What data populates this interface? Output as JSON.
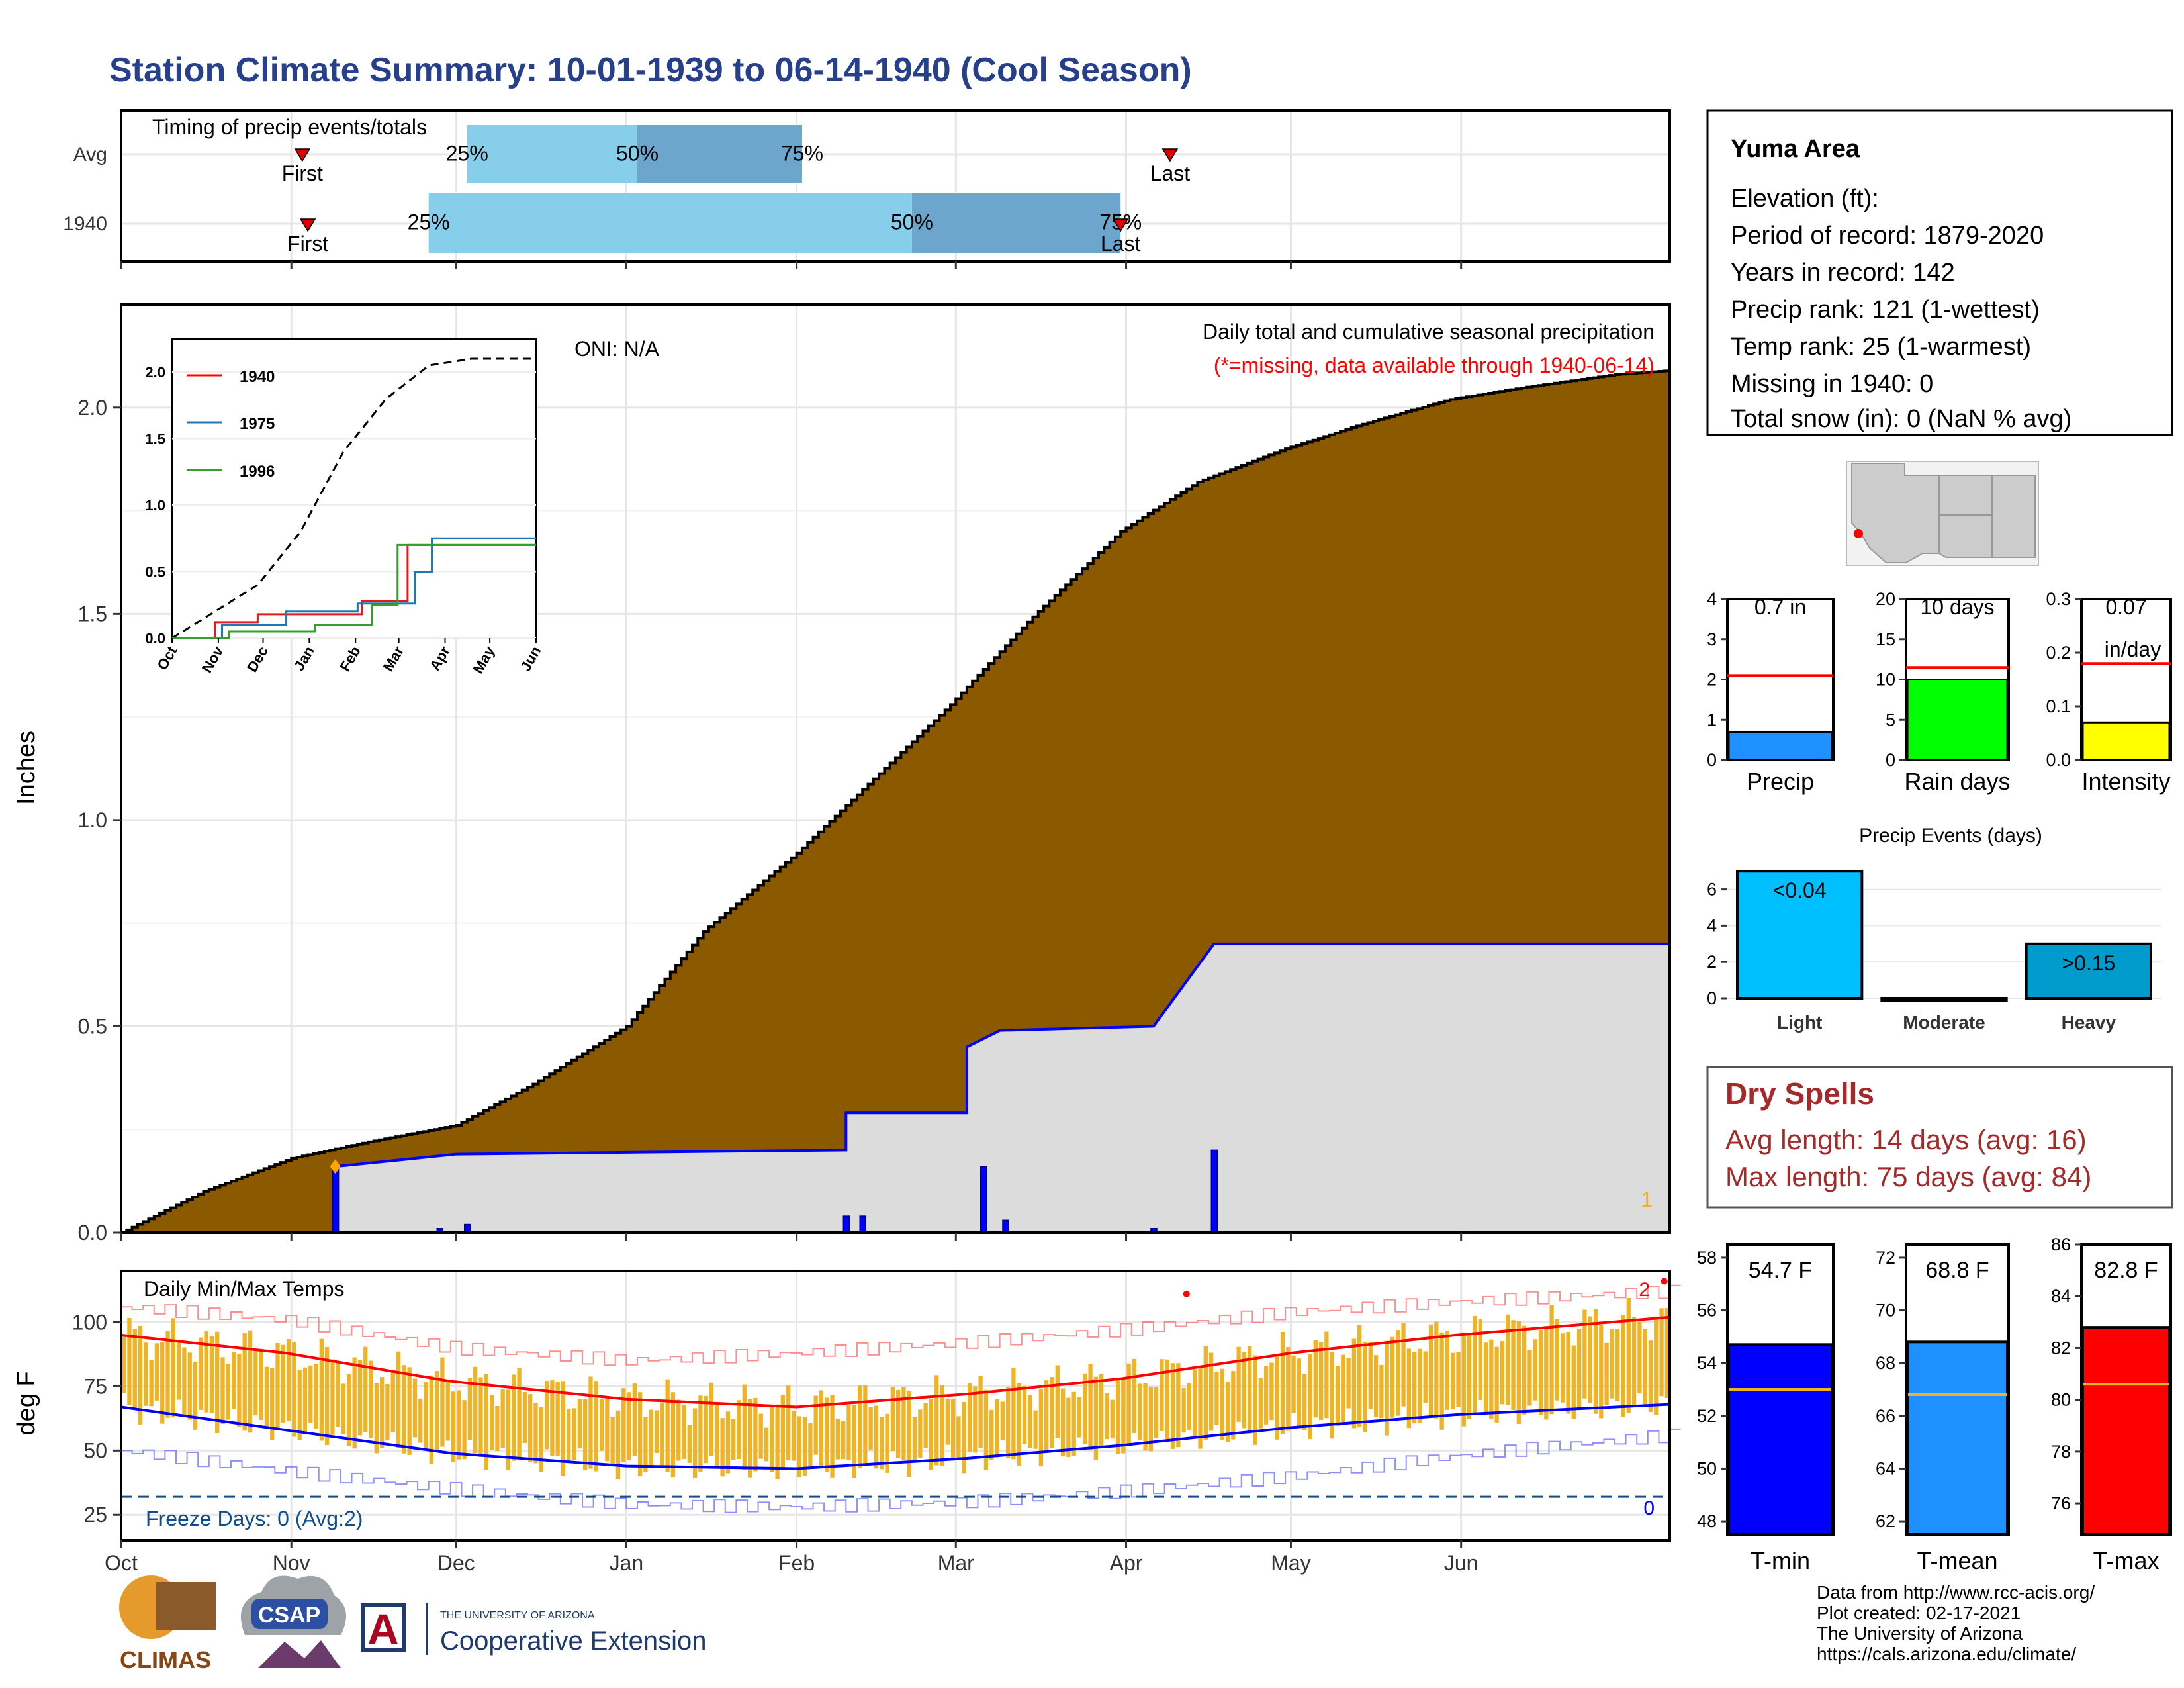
{
  "title": "Station Climate Summary: 10-01-1939 to 06-14-1940 (Cool Season)",
  "colors": {
    "title": "#27408B",
    "cumulative_fill": "#8B5A00",
    "avg_fill": "#DCDCDC",
    "daily_precip": "#0000FF",
    "timing_light": "#87CEEB",
    "timing_dark": "#6CA6CD",
    "temp_bar": "#F0B323",
    "temp_min": "#0000FF",
    "temp_max": "#FF0000",
    "missing_note": "#FF0000"
  },
  "timing": {
    "title": "Timing of precip events/totals",
    "rows": [
      {
        "label": "Avg",
        "p25_label": "25%",
        "p50_label": "50%",
        "p75_label": "75%",
        "first_label": "First",
        "last_label": "Last",
        "first": "1939-11-03",
        "p25": "1939-12-03",
        "p50": "1940-01-03",
        "p75": "1940-02-02",
        "last": "1940-04-09"
      },
      {
        "label": "1940",
        "p25_label": "25%",
        "p50_label": "50%",
        "p75_label": "75%",
        "first_label": "First",
        "last_label": "Last",
        "first": "1939-11-04",
        "p25": "1939-11-26",
        "p50": "1940-02-22",
        "p75": "1940-03-31",
        "last": "1940-03-31"
      }
    ]
  },
  "precip_panel": {
    "ylabel": "Inches",
    "oni": "ONI: N/A",
    "title": "Daily total and cumulative seasonal precipitation",
    "note": "(*=missing, data available through 1940-06-14)",
    "corner_value": "1"
  },
  "temp_panel": {
    "ylabel": "deg F",
    "title": "Daily Min/Max Temps",
    "freeze": "Freeze Days: 0 (Avg:2)",
    "freeze_count": "0",
    "record_count": "2"
  },
  "station": {
    "name": "Yuma Area",
    "lines": [
      "Elevation (ft):",
      "Period of record: 1879-2020",
      "Years in record: 142",
      "Precip rank: 121 (1-wettest)",
      "Temp rank: 25 (1-warmest)",
      "Missing in 1940: 0",
      "Total snow (in): 0 (NaN % avg)"
    ]
  },
  "summary_bars": [
    {
      "name": "Precip",
      "value_label": "0.7 in",
      "value": 0.7,
      "avg": 2.1,
      "ymax": 4,
      "ticks": [
        "0",
        "1",
        "2",
        "3",
        "4"
      ],
      "color": "#1E90FF"
    },
    {
      "name": "Rain days",
      "value_label": "10 days",
      "value": 10,
      "avg": 11.5,
      "ymax": 20,
      "ticks": [
        "0",
        "5",
        "10",
        "15",
        "20"
      ],
      "color": "#00FF00"
    },
    {
      "name": "Intensity",
      "value_label": "0.07",
      "value_label2": "in/day",
      "value": 0.07,
      "avg": 0.18,
      "ymax": 0.3,
      "ticks": [
        "0.0",
        "0.1",
        "0.2",
        "0.3"
      ],
      "color": "#FFFF00"
    }
  ],
  "events": {
    "title": "Precip Events (days)",
    "categories": [
      "Light",
      "Moderate",
      "Heavy"
    ],
    "values": [
      7,
      0,
      3
    ],
    "labels": [
      "<0.04",
      "",
      ">0.15"
    ],
    "ticks": [
      "0",
      "2",
      "4",
      "6"
    ],
    "colors": [
      "#00BFFF",
      "#00BFFF",
      "#009ACD"
    ]
  },
  "dry_spells": {
    "title": "Dry Spells",
    "avg": "Avg length: 14 days (avg: 16)",
    "max": "Max length: 75 days (avg: 84)"
  },
  "temp_bars": [
    {
      "name": "T-min",
      "value_label": "54.7 F",
      "value": 54.7,
      "avg": 53.0,
      "ymin": 47.5,
      "ymax": 58.5,
      "ticks": [
        "48",
        "50",
        "52",
        "54",
        "56",
        "58"
      ],
      "color": "#0000FF"
    },
    {
      "name": "T-mean",
      "value_label": "68.8 F",
      "value": 68.8,
      "avg": 66.8,
      "ymin": 61.5,
      "ymax": 72.5,
      "ticks": [
        "62",
        "64",
        "66",
        "68",
        "70",
        "72"
      ],
      "color": "#1E90FF"
    },
    {
      "name": "T-max",
      "value_label": "82.8 F",
      "value": 82.8,
      "avg": 80.6,
      "ymin": 74.8,
      "ymax": 86.0,
      "ticks": [
        "76",
        "78",
        "80",
        "82",
        "84",
        "86"
      ],
      "color": "#FF0000"
    }
  ],
  "footer": {
    "lines": [
      "Data from http://www.rcc-acis.org/",
      "Plot created: 02-17-2021",
      "The University of Arizona",
      "https://cals.arizona.edu/climate/"
    ],
    "logo_climas": "CLIMAS",
    "logo_csap": "CSAP",
    "ua_small": "THE UNIVERSITY OF ARIZONA",
    "ua_large": "Cooperative Extension",
    "ua_letter": "A"
  },
  "chart_data": [
    {
      "type": "area",
      "name": "cumulative_precip",
      "x_ticks": [
        "Oct",
        "Nov",
        "Dec",
        "Jan",
        "Feb",
        "Mar",
        "Apr",
        "May",
        "Jun"
      ],
      "y_ticks": [
        "0.0",
        "0.5",
        "1.0",
        "1.5",
        "2.0"
      ],
      "ylim": [
        0,
        2.25
      ],
      "avg_cumulative": [
        [
          0,
          0
        ],
        [
          15,
          0.1
        ],
        [
          31,
          0.18
        ],
        [
          45,
          0.22
        ],
        [
          61,
          0.26
        ],
        [
          75,
          0.36
        ],
        [
          92,
          0.5
        ],
        [
          106,
          0.73
        ],
        [
          123,
          0.92
        ],
        [
          137,
          1.1
        ],
        [
          151,
          1.28
        ],
        [
          165,
          1.48
        ],
        [
          182,
          1.7
        ],
        [
          196,
          1.82
        ],
        [
          212,
          1.9
        ],
        [
          226,
          1.96
        ],
        [
          242,
          2.02
        ],
        [
          256,
          2.05
        ],
        [
          272,
          2.08
        ],
        [
          282,
          2.09
        ]
      ],
      "season_cumulative": [
        [
          0,
          0
        ],
        [
          39,
          0
        ],
        [
          39,
          0.16
        ],
        [
          61,
          0.19
        ],
        [
          132,
          0.2
        ],
        [
          132,
          0.29
        ],
        [
          154,
          0.29
        ],
        [
          154,
          0.45
        ],
        [
          160,
          0.49
        ],
        [
          188,
          0.5
        ],
        [
          199,
          0.7
        ],
        [
          282,
          0.7
        ]
      ],
      "daily": [
        [
          39,
          0.16
        ],
        [
          58,
          0.01
        ],
        [
          63,
          0.02
        ],
        [
          132,
          0.04
        ],
        [
          135,
          0.04
        ],
        [
          157,
          0.16
        ],
        [
          161,
          0.03
        ],
        [
          188,
          0.01
        ],
        [
          199,
          0.2
        ]
      ]
    },
    {
      "type": "line",
      "name": "inset_cumulative",
      "x_ticks": [
        "Oct",
        "Nov",
        "Dec",
        "Jan",
        "Feb",
        "Mar",
        "Apr",
        "May",
        "Jun"
      ],
      "y_ticks": [
        "0.0",
        "0.5",
        "1.0",
        "1.5",
        "2.0"
      ],
      "series": [
        {
          "name": "avg",
          "values": [
            [
              0,
              0
            ],
            [
              30,
              0.2
            ],
            [
              60,
              0.4
            ],
            [
              90,
              0.8
            ],
            [
              120,
              1.4
            ],
            [
              150,
              1.8
            ],
            [
              180,
              2.05
            ],
            [
              210,
              2.1
            ],
            [
              255,
              2.1
            ]
          ]
        },
        {
          "name": "1940",
          "values": [
            [
              0,
              0
            ],
            [
              30,
              0.12
            ],
            [
              60,
              0.18
            ],
            [
              120,
              0.18
            ],
            [
              133,
              0.28
            ],
            [
              165,
              0.7
            ],
            [
              255,
              0.7
            ]
          ]
        },
        {
          "name": "1975",
          "values": [
            [
              0,
              0
            ],
            [
              35,
              0.1
            ],
            [
              80,
              0.2
            ],
            [
              130,
              0.26
            ],
            [
              170,
              0.5
            ],
            [
              182,
              0.75
            ],
            [
              255,
              0.75
            ]
          ]
        },
        {
          "name": "1996",
          "values": [
            [
              0,
              0
            ],
            [
              40,
              0.05
            ],
            [
              100,
              0.1
            ],
            [
              140,
              0.25
            ],
            [
              158,
              0.7
            ],
            [
              255,
              0.7
            ]
          ]
        }
      ]
    },
    {
      "type": "line",
      "name": "daily_temps",
      "y_ticks": [
        "25",
        "50",
        "75",
        "100"
      ],
      "ylim": [
        15,
        120
      ],
      "normal_max": [
        [
          0,
          95
        ],
        [
          30,
          88
        ],
        [
          60,
          77
        ],
        [
          92,
          70
        ],
        [
          123,
          67
        ],
        [
          154,
          72
        ],
        [
          182,
          78
        ],
        [
          213,
          88
        ],
        [
          243,
          95
        ],
        [
          282,
          102
        ]
      ],
      "normal_min": [
        [
          0,
          67
        ],
        [
          30,
          58
        ],
        [
          60,
          49
        ],
        [
          92,
          44
        ],
        [
          123,
          43
        ],
        [
          154,
          47
        ],
        [
          182,
          52
        ],
        [
          213,
          59
        ],
        [
          243,
          64
        ],
        [
          282,
          68
        ]
      ],
      "record_max": [
        [
          0,
          106
        ],
        [
          30,
          101
        ],
        [
          60,
          90
        ],
        [
          92,
          85
        ],
        [
          123,
          88
        ],
        [
          154,
          92
        ],
        [
          182,
          97
        ],
        [
          213,
          104
        ],
        [
          243,
          108
        ],
        [
          282,
          112
        ]
      ],
      "record_min": [
        [
          0,
          50
        ],
        [
          30,
          42
        ],
        [
          60,
          35
        ],
        [
          92,
          29
        ],
        [
          123,
          28
        ],
        [
          154,
          30
        ],
        [
          182,
          34
        ],
        [
          213,
          40
        ],
        [
          243,
          48
        ],
        [
          282,
          56
        ]
      ]
    }
  ]
}
